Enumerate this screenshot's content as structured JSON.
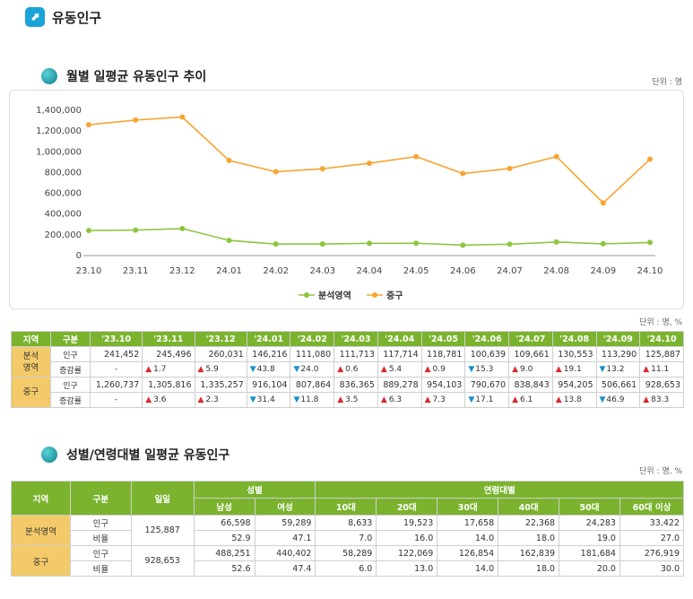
{
  "header": {
    "logo_glyph": "⬈",
    "title": "유동인구"
  },
  "section1": {
    "title": "월별 일평균 유동인구 추이",
    "unit": "단위 : 명"
  },
  "chart_data": {
    "type": "line",
    "title": "월별 일평균 유동인구 추이",
    "categories": [
      "23.10",
      "23.11",
      "23.12",
      "24.01",
      "24.02",
      "24.03",
      "24.04",
      "24.05",
      "24.06",
      "24.07",
      "24.08",
      "24.09",
      "24.10"
    ],
    "y_ticks": [
      "0",
      "200,000",
      "400,000",
      "600,000",
      "800,000",
      "1,000,000",
      "1,200,000",
      "1,400,000"
    ],
    "ylim": [
      0,
      1400000
    ],
    "series": [
      {
        "name": "분석영역",
        "color": "#8dc63f",
        "values": [
          241452,
          245496,
          260031,
          146216,
          111080,
          111713,
          117714,
          118781,
          100639,
          109661,
          130553,
          113290,
          125887
        ]
      },
      {
        "name": "중구",
        "color": "#f7a533",
        "values": [
          1260737,
          1305816,
          1335257,
          916104,
          807864,
          836365,
          889278,
          954103,
          790670,
          838843,
          954205,
          506661,
          928653
        ]
      }
    ],
    "legend_position": "bottom"
  },
  "table1": {
    "unit": "단위 : 명, %",
    "headers": [
      "지역",
      "구분",
      "'23.10",
      "'23.11",
      "'23.12",
      "'24.01",
      "'24.02",
      "'24.03",
      "'24.04",
      "'24.05",
      "'24.06",
      "'24.07",
      "'24.08",
      "'24.09",
      "'24.10"
    ],
    "regions": [
      {
        "name_line1": "분석",
        "name_line2": "영역",
        "population_label": "인구",
        "population": [
          "241,452",
          "245,496",
          "260,031",
          "146,216",
          "111,080",
          "111,713",
          "117,714",
          "118,781",
          "100,639",
          "109,661",
          "130,553",
          "113,290",
          "125,887"
        ],
        "rate_label": "증감률",
        "rates": [
          {
            "dir": "none",
            "value": "-"
          },
          {
            "dir": "up",
            "value": "1.7"
          },
          {
            "dir": "up",
            "value": "5.9"
          },
          {
            "dir": "down",
            "value": "43.8"
          },
          {
            "dir": "down",
            "value": "24.0"
          },
          {
            "dir": "up",
            "value": "0.6"
          },
          {
            "dir": "up",
            "value": "5.4"
          },
          {
            "dir": "up",
            "value": "0.9"
          },
          {
            "dir": "down",
            "value": "15.3"
          },
          {
            "dir": "up",
            "value": "9.0"
          },
          {
            "dir": "up",
            "value": "19.1"
          },
          {
            "dir": "down",
            "value": "13.2"
          },
          {
            "dir": "up",
            "value": "11.1"
          }
        ]
      },
      {
        "name_line1": "중구",
        "name_line2": "",
        "population_label": "인구",
        "population": [
          "1,260,737",
          "1,305,816",
          "1,335,257",
          "916,104",
          "807,864",
          "836,365",
          "889,278",
          "954,103",
          "790,670",
          "838,843",
          "954,205",
          "506,661",
          "928,653"
        ],
        "rate_label": "증감률",
        "rates": [
          {
            "dir": "none",
            "value": "-"
          },
          {
            "dir": "up",
            "value": "3.6"
          },
          {
            "dir": "up",
            "value": "2.3"
          },
          {
            "dir": "down",
            "value": "31.4"
          },
          {
            "dir": "down",
            "value": "11.8"
          },
          {
            "dir": "up",
            "value": "3.5"
          },
          {
            "dir": "up",
            "value": "6.3"
          },
          {
            "dir": "up",
            "value": "7.3"
          },
          {
            "dir": "down",
            "value": "17.1"
          },
          {
            "dir": "up",
            "value": "6.1"
          },
          {
            "dir": "up",
            "value": "13.8"
          },
          {
            "dir": "down",
            "value": "46.9"
          },
          {
            "dir": "up",
            "value": "83.3"
          }
        ]
      }
    ]
  },
  "section2": {
    "title": "성별/연령대별 일평균 유동인구",
    "unit": "단위 : 명, %"
  },
  "table2": {
    "h_region": "지역",
    "h_kind": "구분",
    "h_total": "일일",
    "h_gender": "성별",
    "h_age": "연령대별",
    "sub": [
      "남성",
      "여성",
      "10대",
      "20대",
      "30대",
      "40대",
      "50대",
      "60대 이상"
    ],
    "rows": [
      {
        "region": "분석영역",
        "total": "125,887",
        "pop_label": "인구",
        "pop": [
          "66,598",
          "59,289",
          "8,633",
          "19,523",
          "17,658",
          "22,368",
          "24,283",
          "33,422"
        ],
        "ratio_label": "비율",
        "ratio": [
          "52.9",
          "47.1",
          "7.0",
          "16.0",
          "14.0",
          "18.0",
          "19.0",
          "27.0"
        ]
      },
      {
        "region": "중구",
        "total": "928,653",
        "pop_label": "인구",
        "pop": [
          "488,251",
          "440,402",
          "58,289",
          "122,069",
          "126,854",
          "162,839",
          "181,684",
          "276,919"
        ],
        "ratio_label": "비율",
        "ratio": [
          "52.6",
          "47.4",
          "6.0",
          "13.0",
          "14.0",
          "18.0",
          "20.0",
          "30.0"
        ]
      }
    ]
  }
}
